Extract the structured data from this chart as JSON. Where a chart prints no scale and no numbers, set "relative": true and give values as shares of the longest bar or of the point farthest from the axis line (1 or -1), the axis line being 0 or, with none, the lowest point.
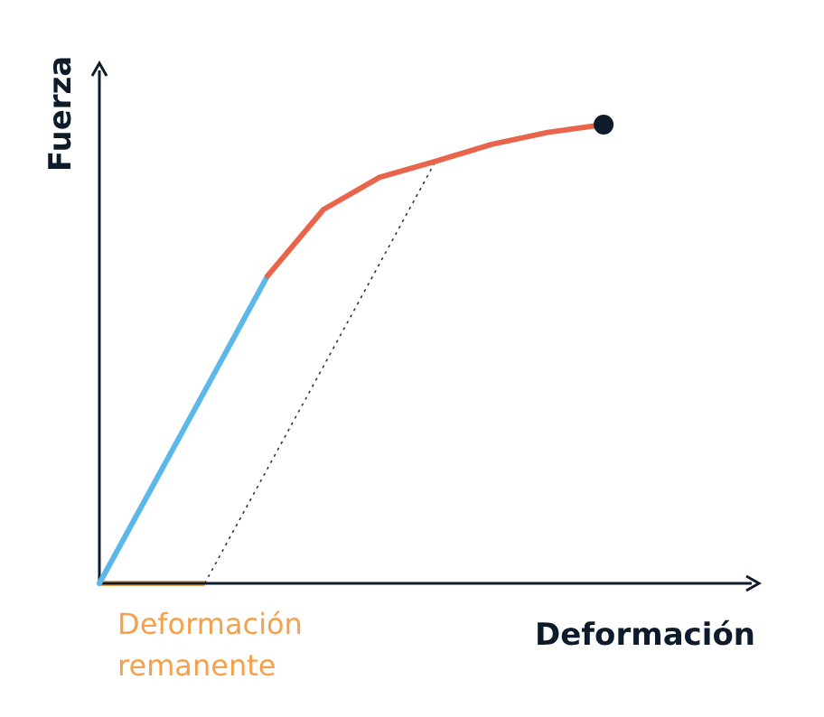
{
  "chart_data": {
    "type": "line",
    "relative": true,
    "xlabel": "Deformación",
    "ylabel": "Fuerza",
    "annotations": [
      "Deformación remanente"
    ],
    "categories": [
      null,
      null,
      null,
      null,
      null,
      null,
      null,
      null,
      null,
      null
    ],
    "series": [
      {
        "color": "#5bb8e8",
        "values": [
          0,
          0.223,
          0.446,
          0.67,
          null,
          null,
          null,
          null,
          null,
          null
        ]
      },
      {
        "color": "#e8644a",
        "values": [
          null,
          null,
          null,
          0.67,
          0.815,
          0.885,
          0.92,
          0.957,
          0.983,
          1
        ]
      }
    ]
  }
}
